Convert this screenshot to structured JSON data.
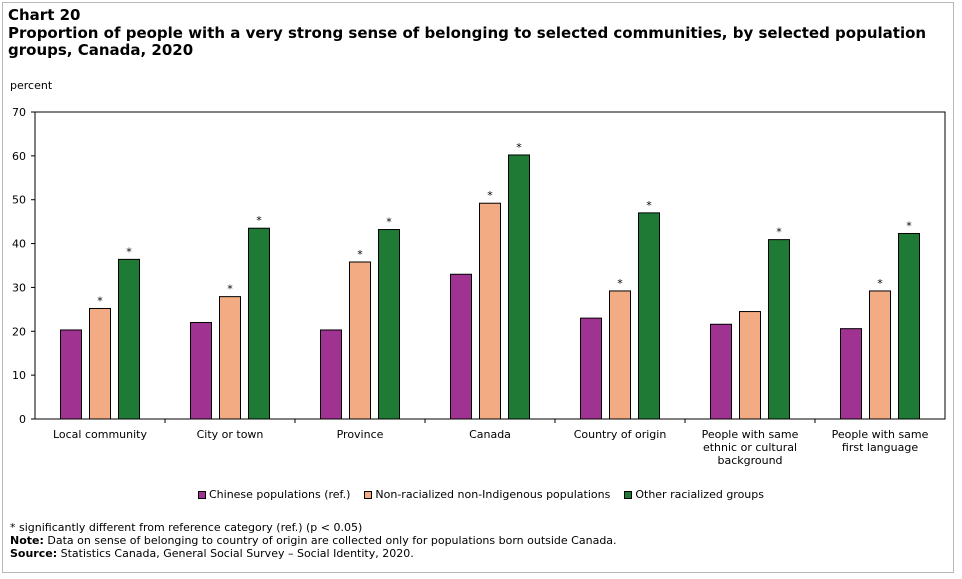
{
  "chart_label": "Chart 20",
  "chart_data": {
    "type": "bar",
    "title": "Proportion of people with a very strong sense of belonging to selected communities, by selected population groups, Canada, 2020",
    "ylabel": "percent",
    "xlabel": "",
    "ylim": [
      0,
      70
    ],
    "yticks": [
      0,
      10,
      20,
      30,
      40,
      50,
      60,
      70
    ],
    "categories": [
      [
        "Local community"
      ],
      [
        "City or town"
      ],
      [
        "Province"
      ],
      [
        "Canada"
      ],
      [
        "Country of origin"
      ],
      [
        "People with same",
        "ethnic or cultural",
        "background"
      ],
      [
        "People with same",
        "first language"
      ]
    ],
    "series": [
      {
        "name": "Chinese populations (ref.)",
        "color": "#a03291",
        "values": [
          20.3,
          22.0,
          20.3,
          33.0,
          23.0,
          21.6,
          20.6
        ],
        "significant": [
          false,
          false,
          false,
          false,
          false,
          false,
          false
        ]
      },
      {
        "name": "Non-racialized non-Indigenous populations",
        "color": "#f2ab83",
        "values": [
          25.2,
          27.9,
          35.8,
          49.2,
          29.2,
          24.5,
          29.2
        ],
        "significant": [
          true,
          true,
          true,
          true,
          true,
          false,
          true
        ]
      },
      {
        "name": "Other racialized groups",
        "color": "#1e7a34",
        "values": [
          36.4,
          43.5,
          43.2,
          60.2,
          47.0,
          40.9,
          42.3
        ],
        "significant": [
          true,
          true,
          true,
          true,
          true,
          true,
          true
        ]
      }
    ],
    "significance_marker": "*",
    "grid": false,
    "legend_position": "bottom"
  },
  "footnotes": {
    "significance": "* significantly different from reference category (ref.) (p < 0.05)",
    "note_label": "Note:",
    "note_text": " Data on sense of belonging to country of origin are collected only for populations born outside Canada.",
    "source_label": "Source:",
    "source_text": " Statistics Canada, General Social Survey – Social Identity, 2020."
  }
}
